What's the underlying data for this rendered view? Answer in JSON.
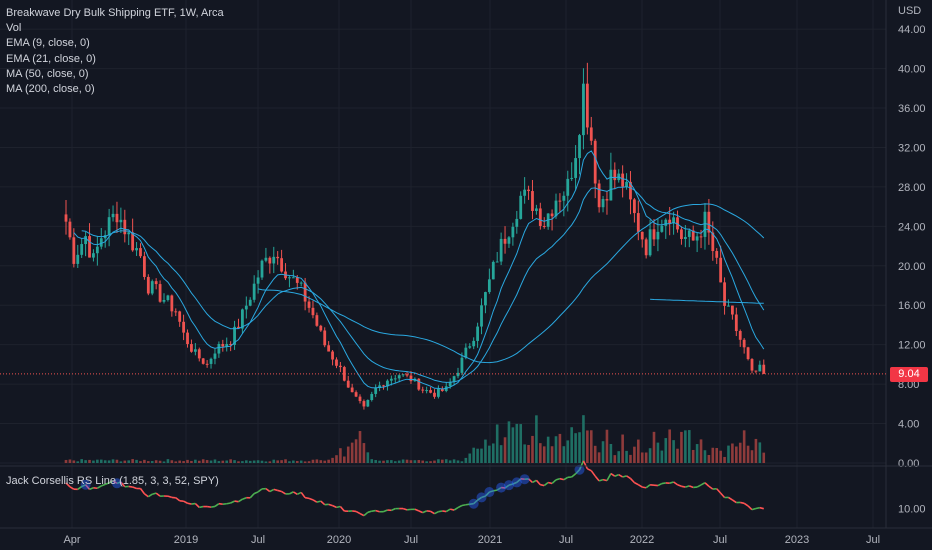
{
  "legend": {
    "title": "Breakwave Dry Bulk Shipping ETF, 1W, Arca",
    "lines": [
      "Vol",
      "EMA (9, close, 0)",
      "EMA (21, close, 0)",
      "MA (50, close, 0)",
      "MA (200, close, 0)"
    ]
  },
  "indicator": {
    "label": "Jack Corsellis RS Line (1.85, 3, 3, 52, SPY)"
  },
  "price_badge": "9.04",
  "colors": {
    "up": "#26a69a",
    "down": "#ef5350",
    "ma": "#2aa8e0",
    "rs_up": "#4caf50",
    "rs_down": "#ff5252",
    "rs_dot": "#2962ff"
  },
  "chart_data": {
    "type": "candlestick",
    "currency_label": "USD",
    "y_ticks": [
      "44.00",
      "40.00",
      "36.00",
      "32.00",
      "28.00",
      "24.00",
      "20.00",
      "16.00",
      "12.00",
      "8.00",
      "4.00",
      "0.00"
    ],
    "ylim": [
      0,
      45
    ],
    "x_ticks": [
      "Apr",
      "2019",
      "Jul",
      "2020",
      "Jul",
      "2021",
      "Jul",
      "2022",
      "Jul",
      "2023",
      "Jul"
    ],
    "last_price": 9.04,
    "anchors": [
      {
        "w": 0,
        "v": 24.5
      },
      {
        "w": 2,
        "v": 21
      },
      {
        "w": 5,
        "v": 23
      },
      {
        "w": 7,
        "v": 20.5
      },
      {
        "w": 9,
        "v": 23
      },
      {
        "w": 13,
        "v": 25.5
      },
      {
        "w": 16,
        "v": 23
      },
      {
        "w": 19,
        "v": 21
      },
      {
        "w": 21,
        "v": 18
      },
      {
        "w": 24,
        "v": 17
      },
      {
        "w": 28,
        "v": 15.5
      },
      {
        "w": 30,
        "v": 13
      },
      {
        "w": 33,
        "v": 11
      },
      {
        "w": 36,
        "v": 10
      },
      {
        "w": 38,
        "v": 11.5
      },
      {
        "w": 42,
        "v": 12.5
      },
      {
        "w": 44,
        "v": 14
      },
      {
        "w": 47,
        "v": 17
      },
      {
        "w": 50,
        "v": 20
      },
      {
        "w": 53,
        "v": 21.5
      },
      {
        "w": 57,
        "v": 19
      },
      {
        "w": 60,
        "v": 17.5
      },
      {
        "w": 63,
        "v": 15
      },
      {
        "w": 66,
        "v": 12
      },
      {
        "w": 70,
        "v": 9.5
      },
      {
        "w": 73,
        "v": 7
      },
      {
        "w": 76,
        "v": 5.5
      },
      {
        "w": 79,
        "v": 7.5
      },
      {
        "w": 82,
        "v": 8.5
      },
      {
        "w": 85,
        "v": 9
      },
      {
        "w": 88,
        "v": 8.5
      },
      {
        "w": 91,
        "v": 7.5
      },
      {
        "w": 94,
        "v": 7
      },
      {
        "w": 97,
        "v": 7.5
      },
      {
        "w": 100,
        "v": 9.5
      },
      {
        "w": 104,
        "v": 13
      },
      {
        "w": 107,
        "v": 17
      },
      {
        "w": 110,
        "v": 21
      },
      {
        "w": 113,
        "v": 24
      },
      {
        "w": 116,
        "v": 27
      },
      {
        "w": 119,
        "v": 26.5
      },
      {
        "w": 122,
        "v": 24.5
      },
      {
        "w": 125,
        "v": 27
      },
      {
        "w": 128,
        "v": 28
      },
      {
        "w": 130,
        "v": 32
      },
      {
        "w": 132,
        "v": 38
      },
      {
        "w": 134,
        "v": 33
      },
      {
        "w": 136,
        "v": 26
      },
      {
        "w": 139,
        "v": 29
      },
      {
        "w": 142,
        "v": 28.5
      },
      {
        "w": 145,
        "v": 25
      },
      {
        "w": 148,
        "v": 22
      },
      {
        "w": 151,
        "v": 24.5
      },
      {
        "w": 154,
        "v": 25.5
      },
      {
        "w": 157,
        "v": 23
      },
      {
        "w": 160,
        "v": 22.5
      },
      {
        "w": 163,
        "v": 24.5
      },
      {
        "w": 166,
        "v": 20
      },
      {
        "w": 168,
        "v": 16
      },
      {
        "w": 170,
        "v": 14.5
      },
      {
        "w": 173,
        "v": 11.5
      },
      {
        "w": 175,
        "v": 9
      },
      {
        "w": 177,
        "v": 9.5
      },
      {
        "w": 178,
        "v": 9.04
      }
    ],
    "volume_spikes": [
      {
        "w": 66,
        "v": 0.3
      },
      {
        "w": 70,
        "v": 1.5
      },
      {
        "w": 73,
        "v": 2.8
      },
      {
        "w": 75,
        "v": 3.4
      },
      {
        "w": 104,
        "v": 2
      },
      {
        "w": 107,
        "v": 3.5
      },
      {
        "w": 110,
        "v": 4.2
      },
      {
        "w": 113,
        "v": 6.5
      },
      {
        "w": 115,
        "v": 5.8
      },
      {
        "w": 118,
        "v": 3
      },
      {
        "w": 120,
        "v": 4.5
      },
      {
        "w": 123,
        "v": 3.5
      },
      {
        "w": 126,
        "v": 3.8
      },
      {
        "w": 129,
        "v": 4.5
      },
      {
        "w": 132,
        "v": 5
      },
      {
        "w": 134,
        "v": 4
      },
      {
        "w": 138,
        "v": 3.5
      },
      {
        "w": 142,
        "v": 3
      },
      {
        "w": 146,
        "v": 2.5
      },
      {
        "w": 150,
        "v": 3
      },
      {
        "w": 154,
        "v": 3.8
      },
      {
        "w": 158,
        "v": 5.5
      },
      {
        "w": 162,
        "v": 3
      },
      {
        "w": 166,
        "v": 2.5
      },
      {
        "w": 170,
        "v": 3
      },
      {
        "w": 173,
        "v": 3.5
      },
      {
        "w": 176,
        "v": 3.2
      }
    ],
    "rs_ticks": [
      "10.00"
    ],
    "rs_dots": [
      5,
      13,
      104,
      106,
      108,
      111,
      113,
      115,
      117,
      131
    ]
  }
}
